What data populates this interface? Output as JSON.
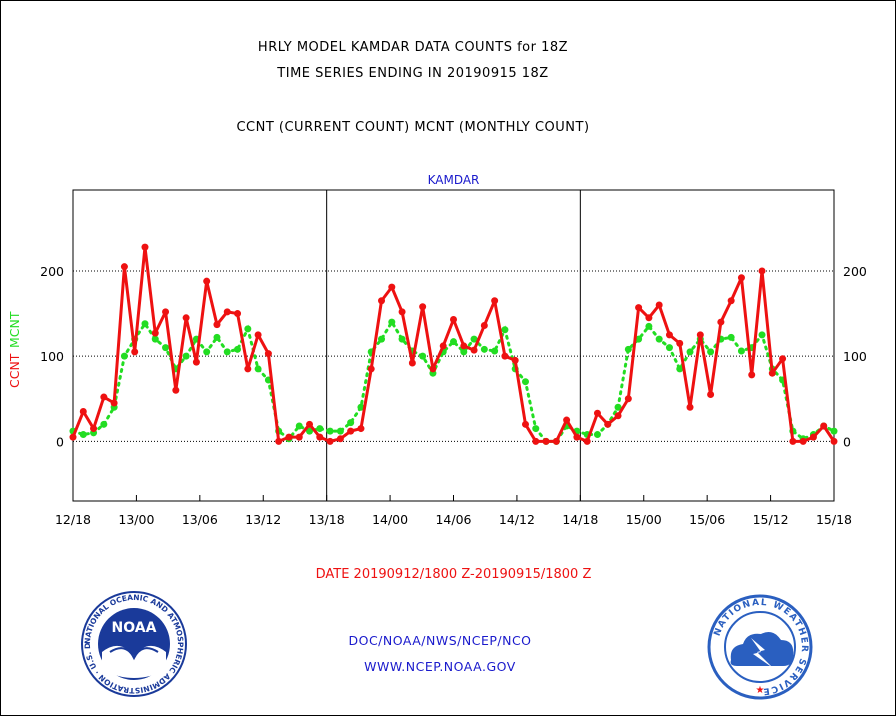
{
  "header": {
    "title_line1": "HRLY MODEL KAMDAR DATA COUNTS for 18Z",
    "title_line2": "TIME SERIES ENDING IN 20190915 18Z",
    "subtitle": "CCNT (CURRENT COUNT) MCNT (MONTHLY COUNT)"
  },
  "chart_data": {
    "type": "line",
    "title": "KAMDAR",
    "ylabel_current": "CCNT",
    "ylabel_monthly": "MCNT",
    "xlabel": "DATE 20190912/1800 Z-20190915/1800 Z",
    "ylim": [
      -70,
      295
    ],
    "y_ticks": [
      0,
      100,
      200
    ],
    "x_ticks": [
      "12/18",
      "13/00",
      "13/06",
      "13/12",
      "13/18",
      "14/00",
      "14/06",
      "14/12",
      "14/18",
      "15/00",
      "15/06",
      "15/12",
      "15/18"
    ],
    "panel_dividers": [
      "13/18",
      "14/18"
    ],
    "grid": "horizontal dotted at 0, 100, 200",
    "series": [
      {
        "name": "CCNT",
        "color": "#ee1111",
        "values": [
          5,
          35,
          15,
          52,
          45,
          205,
          105,
          228,
          127,
          152,
          60,
          145,
          93,
          188,
          137,
          152,
          150,
          85,
          125,
          103,
          0,
          5,
          5,
          20,
          5,
          0,
          3,
          12,
          15,
          85,
          165,
          181,
          152,
          92,
          158,
          85,
          112,
          143,
          112,
          107,
          136,
          165,
          100,
          95,
          20,
          0,
          0,
          0,
          25,
          5,
          0,
          33,
          20,
          30,
          50,
          157,
          145,
          160,
          125,
          115,
          40,
          125,
          55,
          140,
          165,
          192,
          78,
          200,
          80,
          97,
          0,
          0,
          5,
          18,
          0
        ]
      },
      {
        "name": "MCNT",
        "color": "#22dd22",
        "values": [
          12,
          8,
          10,
          20,
          40,
          100,
          120,
          138,
          120,
          110,
          85,
          100,
          120,
          105,
          122,
          105,
          108,
          132,
          85,
          72,
          12,
          3,
          18,
          12,
          15,
          12,
          12,
          22,
          40,
          105,
          120,
          140,
          120,
          106,
          100,
          80,
          105,
          117,
          105,
          120,
          108,
          106,
          131,
          85,
          70,
          15,
          0,
          0,
          18,
          12,
          8,
          8,
          20,
          40,
          108,
          120,
          135,
          120,
          110,
          85,
          105,
          120,
          105,
          120,
          122,
          106,
          110,
          125,
          85,
          72,
          12,
          3,
          8,
          18,
          12
        ]
      }
    ]
  },
  "footer": {
    "credit": "DOC/NOAA/NWS/NCEP/NCO",
    "url": "WWW.NCEP.NOAA.GOV",
    "noaa_logo_text": "NOAA",
    "noaa_ring_text": "NATIONAL OCEANIC AND ATMOSPHERIC ADMINISTRATION · U.S. DEPARTMENT OF COMMERCE ·",
    "nws_ring_text": "NATIONAL WEATHER SERVICE"
  },
  "colors": {
    "title": "#000000",
    "label_blue": "#1a1acc",
    "label_red": "#ee1111",
    "label_green": "#22dd22",
    "noaa_blue": "#1a3a9a",
    "nws_blue": "#2a5fc0"
  }
}
